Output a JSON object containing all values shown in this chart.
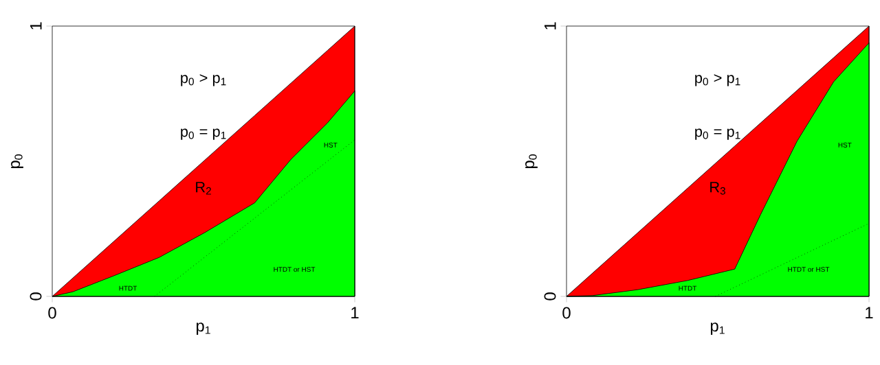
{
  "chart_data": [
    {
      "type": "area",
      "xlabel": "p$_{1}$",
      "ylabel": "p$_{0}$",
      "xlim": [
        0,
        1
      ],
      "ylim": [
        0,
        1
      ],
      "xticks": [
        0,
        1
      ],
      "yticks": [
        0,
        1
      ],
      "series": [
        {
          "color": "#ff0000",
          "x": [
            0,
            0.068,
            0.203,
            0.353,
            0.504,
            0.669,
            0.789,
            0.91,
            1
          ],
          "values": [
            0,
            0.068,
            0.203,
            0.353,
            0.504,
            0.669,
            0.789,
            0.91,
            1
          ]
        },
        {
          "color": "#00ff00",
          "x": [
            0,
            0.068,
            0.203,
            0.353,
            0.504,
            0.669,
            0.789,
            0.91,
            1
          ],
          "values": [
            0,
            0.017,
            0.076,
            0.144,
            0.236,
            0.346,
            0.507,
            0.642,
            0.76
          ]
        },
        {
          "type": "line",
          "color": "#000000",
          "line_style": "dotted",
          "x": [
            0.338,
            1
          ],
          "values": [
            0,
            0.579
          ]
        }
      ],
      "annotations": [
        "HTDT",
        "HTDT or HST",
        "HST",
        "p$_{0}$ > p$_{1}$",
        "p$_{0}$ = p$_{1}$",
        "R$_{2}$"
      ]
    },
    {
      "type": "area",
      "xlabel": "p$_{1}$",
      "ylabel": "p$_{0}$",
      "xlim": [
        0,
        1
      ],
      "ylim": [
        0,
        1
      ],
      "xticks": [
        0,
        1
      ],
      "yticks": [
        0,
        1
      ],
      "series": [
        {
          "color": "#ff0000",
          "x": [
            0,
            0.086,
            0.236,
            0.401,
            0.556,
            0.642,
            0.762,
            0.883,
            1
          ],
          "values": [
            0,
            0.086,
            0.236,
            0.401,
            0.556,
            0.642,
            0.762,
            0.883,
            1
          ]
        },
        {
          "color": "#00ff00",
          "x": [
            0,
            0.086,
            0.236,
            0.401,
            0.556,
            0.642,
            0.762,
            0.883,
            1
          ],
          "values": [
            0,
            0.003,
            0.025,
            0.059,
            0.101,
            0.304,
            0.574,
            0.794,
            0.938
          ]
        },
        {
          "type": "line",
          "color": "#000000",
          "line_style": "dotted",
          "x": [
            0.492,
            1
          ],
          "values": [
            0,
            0.27
          ]
        }
      ],
      "annotations": [
        "HTDT",
        "HTDT or HST",
        "HST",
        "p$_{0}$ > p$_{1}$",
        "p$_{0}$ = p$_{1}$",
        "R$_{3}$"
      ]
    }
  ]
}
